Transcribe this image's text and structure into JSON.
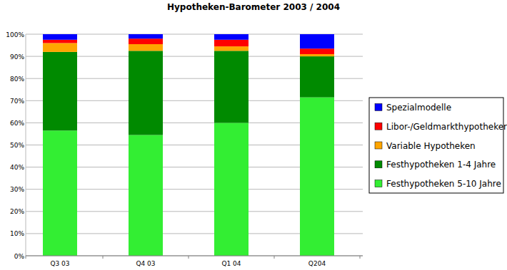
{
  "chart_data": {
    "type": "bar",
    "title": "Hypotheken-Barometer 2003 / 2004",
    "categories": [
      "Q3 03",
      "Q4 03",
      "Q1 04",
      "Q204"
    ],
    "series": [
      {
        "name": "Festhypotheken 5-10 Jahre",
        "color": "#33ee33",
        "values": [
          56.5,
          54.5,
          60,
          71.5
        ]
      },
      {
        "name": "Festhypotheken 1-4 Jahre",
        "color": "#008a00",
        "values": [
          35.5,
          38,
          32.5,
          18.5
        ]
      },
      {
        "name": "Variable Hypotheken",
        "color": "#ffa500",
        "values": [
          4,
          3,
          2,
          1
        ]
      },
      {
        "name": "Libor-/Geldmarkthypotheken",
        "color": "#ff0000",
        "values": [
          1.5,
          2.5,
          3,
          2.5
        ]
      },
      {
        "name": "Spezialmodelle",
        "color": "#0000ff",
        "values": [
          2.5,
          2,
          2.5,
          6.5
        ]
      }
    ],
    "ylim": [
      0,
      100
    ],
    "yticks": [
      {
        "value": 0,
        "label": "0%"
      },
      {
        "value": 10,
        "label": "10%"
      },
      {
        "value": 20,
        "label": "20%"
      },
      {
        "value": 30,
        "label": "30%"
      },
      {
        "value": 40,
        "label": "40%"
      },
      {
        "value": 50,
        "label": "50%"
      },
      {
        "value": 60,
        "label": "60%"
      },
      {
        "value": 70,
        "label": "70%"
      },
      {
        "value": 80,
        "label": "80%"
      },
      {
        "value": 90,
        "label": "90%"
      },
      {
        "value": 100,
        "label": "100%"
      }
    ],
    "grid": true,
    "stacked": true,
    "legend": "right"
  }
}
